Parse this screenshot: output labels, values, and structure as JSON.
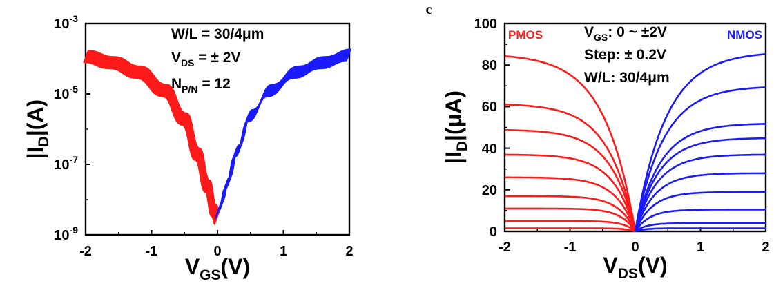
{
  "stray_mark": "c",
  "colors": {
    "pmos": "#ff1a1a",
    "nmos": "#1a1aff",
    "axis": "#000000"
  },
  "chart_data": [
    {
      "type": "line",
      "panel": "left",
      "yscale": "log",
      "xlim": [
        -2,
        2
      ],
      "ylim": [
        1e-09,
        0.001
      ],
      "xticks": [
        "-2",
        "-1",
        "0",
        "1",
        "2"
      ],
      "yticks": [
        {
          "value": 1e-09,
          "base": "10",
          "exp": "-9"
        },
        {
          "value": 1e-07,
          "base": "10",
          "exp": "-7"
        },
        {
          "value": 1e-05,
          "base": "10",
          "exp": "-5"
        },
        {
          "value": 0.001,
          "base": "10",
          "exp": "-3"
        }
      ],
      "xlabel": {
        "main": "V",
        "sub": "GS",
        "tail": "(V)"
      },
      "ylabel": {
        "pre": "|I",
        "sub": "D",
        "tail": "|(A)"
      },
      "annotations": [
        {
          "main": "W/L = 30/4μm",
          "sub": "",
          "tail": ""
        },
        {
          "main": "V",
          "sub": "DS",
          "tail": " = ± 2V"
        },
        {
          "main": "N",
          "sub": "P/N",
          "tail": " = 12"
        }
      ],
      "pmos_curve": {
        "x": [
          -2,
          -1.6,
          -1.2,
          -0.8,
          -0.5,
          -0.3,
          -0.15,
          -0.05,
          0
        ],
        "y": [
          0.00012,
          8e-05,
          4.3e-05,
          1.3e-05,
          2e-06,
          2e-07,
          2.5e-08,
          5e-09,
          3e-09
        ]
      },
      "nmos_curve": {
        "x": [
          0,
          0.05,
          0.15,
          0.3,
          0.5,
          0.8,
          1.2,
          1.6,
          2
        ],
        "y": [
          4.5e-09,
          7e-09,
          3e-08,
          2.5e-07,
          2.5e-06,
          1.3e-05,
          4.3e-05,
          8e-05,
          0.00013
        ]
      },
      "curve_count_per_type": 12
    },
    {
      "type": "line",
      "panel": "right",
      "xlim": [
        -2,
        2
      ],
      "ylim": [
        0,
        100
      ],
      "xticks": [
        "-2",
        "-1",
        "0",
        "1",
        "2"
      ],
      "yticks": [
        "0",
        "20",
        "40",
        "60",
        "80",
        "100"
      ],
      "xlabel": {
        "main": "V",
        "sub": "DS",
        "tail": "(V)"
      },
      "ylabel": {
        "pre": "|I",
        "sub": "D",
        "tail": "|(μA)"
      },
      "corner_labels": {
        "left": "PMOS",
        "right": "NMOS"
      },
      "annotations": [
        {
          "main": "V",
          "sub": "GS",
          "tail": ": 0 ~ ±2V"
        },
        {
          "main": "Step: ± 0.2V",
          "sub": "",
          "tail": ""
        },
        {
          "main": "W/L: 30/4μm",
          "sub": "",
          "tail": ""
        }
      ],
      "series": [
        {
          "values": [
            85.5,
            61.5,
            49,
            37,
            26,
            17,
            11,
            5,
            1.5
          ],
          "color_key": "pmos"
        },
        {
          "values": [
            86.5,
            70,
            52,
            45,
            37,
            28,
            19,
            10.5,
            4,
            1.5
          ],
          "color_key": "nmos"
        }
      ]
    }
  ]
}
